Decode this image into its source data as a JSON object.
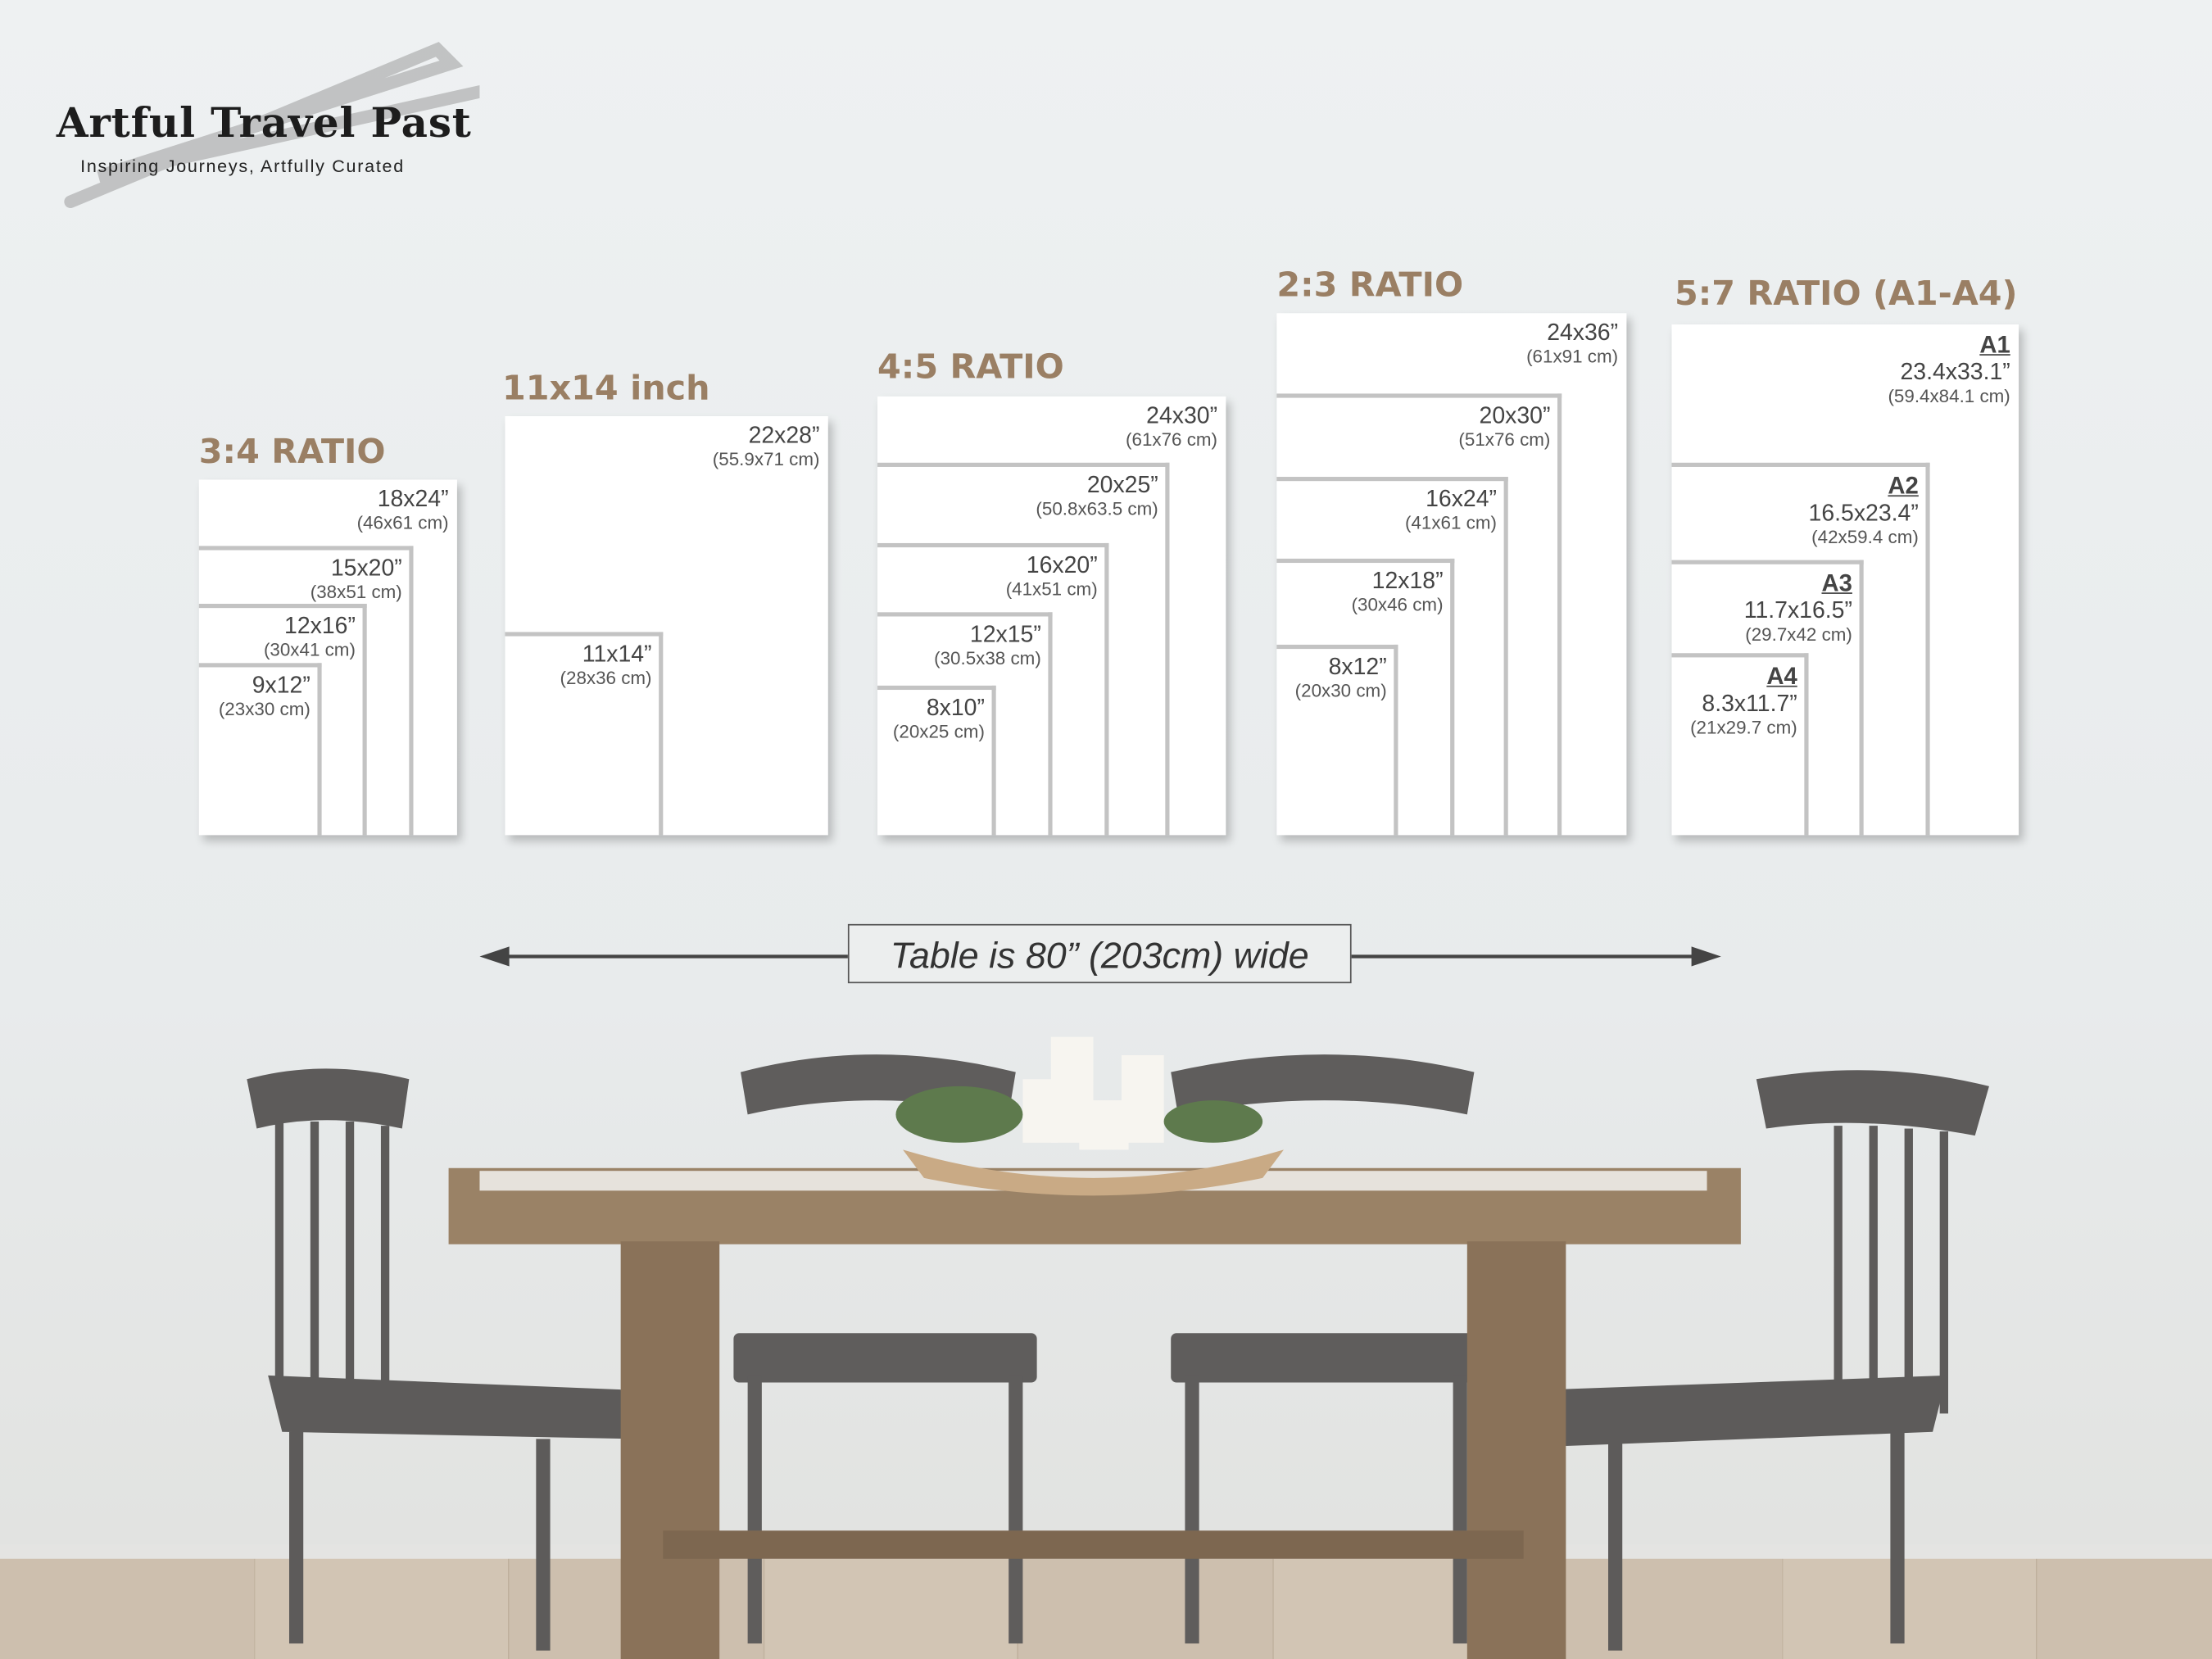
{
  "brand": {
    "title": "Artful Travel Past",
    "tagline": "Inspiring Journeys, Artfully Curated"
  },
  "groups": [
    {
      "label": "3:4 RATIO",
      "sizes": [
        {
          "inch": "18x24”",
          "cm": "(46x61 cm)"
        },
        {
          "inch": "15x20”",
          "cm": "(38x51 cm)"
        },
        {
          "inch": "12x16”",
          "cm": "(30x41 cm)"
        },
        {
          "inch": "9x12”",
          "cm": "(23x30 cm)"
        }
      ]
    },
    {
      "label": "11x14 inch",
      "sizes": [
        {
          "inch": "22x28”",
          "cm": "(55.9x71 cm)"
        },
        {
          "inch": "11x14”",
          "cm": "(28x36 cm)"
        }
      ]
    },
    {
      "label": "4:5 RATIO",
      "sizes": [
        {
          "inch": "24x30”",
          "cm": "(61x76 cm)"
        },
        {
          "inch": "20x25”",
          "cm": "(50.8x63.5 cm)"
        },
        {
          "inch": "16x20”",
          "cm": "(41x51 cm)"
        },
        {
          "inch": "12x15”",
          "cm": "(30.5x38 cm)"
        },
        {
          "inch": "8x10”",
          "cm": "(20x25 cm)"
        }
      ]
    },
    {
      "label": "2:3 RATIO",
      "sizes": [
        {
          "inch": "24x36”",
          "cm": "(61x91 cm)"
        },
        {
          "inch": "20x30”",
          "cm": "(51x76 cm)"
        },
        {
          "inch": "16x24”",
          "cm": "(41x61 cm)"
        },
        {
          "inch": "12x18”",
          "cm": "(30x46 cm)"
        },
        {
          "inch": "8x12”",
          "cm": "(20x30 cm)"
        }
      ]
    },
    {
      "label": "5:7 RATIO (A1-A4)",
      "sizes": [
        {
          "name": "A1",
          "inch": "23.4x33.1”",
          "cm": "(59.4x84.1 cm)"
        },
        {
          "name": "A2",
          "inch": "16.5x23.4”",
          "cm": "(42x59.4 cm)"
        },
        {
          "name": "A3",
          "inch": "11.7x16.5”",
          "cm": "(29.7x42 cm)"
        },
        {
          "name": "A4",
          "inch": "8.3x11.7”",
          "cm": "(21x29.7 cm)"
        }
      ]
    }
  ],
  "table_note": "Table is 80” (203cm) wide",
  "colors": {
    "heading": "#9a7f64",
    "text": "#444444",
    "frame_line": "#c3c3c3"
  }
}
